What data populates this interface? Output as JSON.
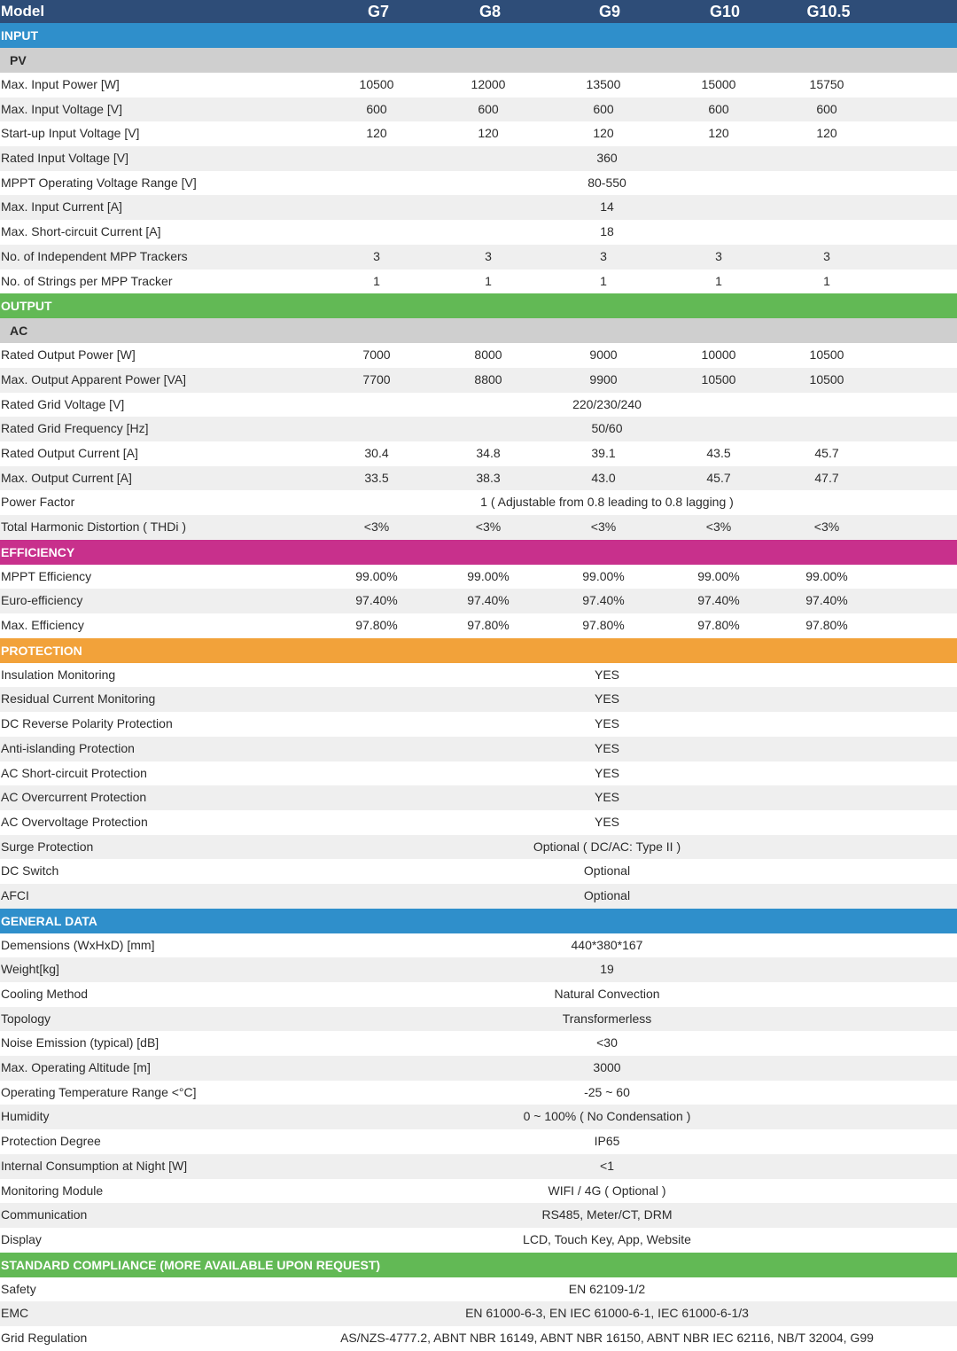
{
  "header": {
    "model_label": "Model",
    "models": [
      "G7",
      "G8",
      "G9",
      "G10",
      "G10.5"
    ],
    "color": "#2e4d78"
  },
  "sections": [
    {
      "title": "INPUT",
      "color": "#2f8fcb",
      "subtitle": "PV",
      "rows": [
        {
          "label": "Max. Input Power [W]",
          "values": [
            "10500",
            "12000",
            "13500",
            "15000",
            "15750"
          ]
        },
        {
          "label": "Max. Input Voltage [V]",
          "values": [
            "600",
            "600",
            "600",
            "600",
            "600"
          ]
        },
        {
          "label": "Start-up Input Voltage [V]",
          "values": [
            "120",
            "120",
            "120",
            "120",
            "120"
          ]
        },
        {
          "label": "Rated Input Voltage [V]",
          "span": "360"
        },
        {
          "label": "MPPT Operating Voltage Range [V]",
          "span": "80-550"
        },
        {
          "label": "Max. Input Current [A]",
          "span": "14"
        },
        {
          "label": "Max. Short-circuit Current [A]",
          "span": "18"
        },
        {
          "label": "No. of Independent MPP Trackers",
          "values": [
            "3",
            "3",
            "3",
            "3",
            "3"
          ]
        },
        {
          "label": "No. of Strings per MPP Tracker",
          "values": [
            "1",
            "1",
            "1",
            "1",
            "1"
          ]
        }
      ]
    },
    {
      "title": "OUTPUT",
      "color": "#62b955",
      "subtitle": "AC",
      "rows": [
        {
          "label": "Rated Output Power [W]",
          "values": [
            "7000",
            "8000",
            "9000",
            "10000",
            "10500"
          ]
        },
        {
          "label": "Max. Output Apparent Power [VA]",
          "values": [
            "7700",
            "8800",
            "9900",
            "10500",
            "10500"
          ]
        },
        {
          "label": "Rated Grid Voltage [V]",
          "span": "220/230/240"
        },
        {
          "label": "Rated Grid Frequency [Hz]",
          "span": "50/60"
        },
        {
          "label": "Rated Output Current [A]",
          "values": [
            "30.4",
            "34.8",
            "39.1",
            "43.5",
            "45.7"
          ]
        },
        {
          "label": "Max. Output Current [A]",
          "values": [
            "33.5",
            "38.3",
            "43.0",
            "45.7",
            "47.7"
          ]
        },
        {
          "label": "Power Factor",
          "span": "1 ( Adjustable from 0.8 leading to 0.8 lagging )"
        },
        {
          "label": "Total Harmonic Distortion ( THDi )",
          "values": [
            "<3%",
            "<3%",
            "<3%",
            "<3%",
            "<3%"
          ]
        }
      ]
    },
    {
      "title": "EFFICIENCY",
      "color": "#c8308c",
      "rows": [
        {
          "label": "MPPT Efficiency",
          "values": [
            "99.00%",
            "99.00%",
            "99.00%",
            "99.00%",
            "99.00%"
          ]
        },
        {
          "label": "Euro-efficiency",
          "values": [
            "97.40%",
            "97.40%",
            "97.40%",
            "97.40%",
            "97.40%"
          ]
        },
        {
          "label": "Max. Efficiency",
          "values": [
            "97.80%",
            "97.80%",
            "97.80%",
            "97.80%",
            "97.80%"
          ]
        }
      ]
    },
    {
      "title": "PROTECTION",
      "color": "#f2a23a",
      "rows": [
        {
          "label": "Insulation Monitoring",
          "span": "YES"
        },
        {
          "label": "Residual Current Monitoring",
          "span": "YES"
        },
        {
          "label": "DC Reverse Polarity Protection",
          "span": "YES"
        },
        {
          "label": "Anti-islanding Protection",
          "span": "YES"
        },
        {
          "label": "AC Short-circuit Protection",
          "span": "YES"
        },
        {
          "label": "AC Overcurrent Protection",
          "span": "YES"
        },
        {
          "label": "AC Overvoltage Protection",
          "span": "YES"
        },
        {
          "label": "Surge Protection",
          "span": "Optional ( DC/AC: Type II )"
        },
        {
          "label": "DC Switch",
          "span": "Optional"
        },
        {
          "label": "AFCI",
          "span": "Optional"
        }
      ]
    },
    {
      "title": "GENERAL DATA",
      "color": "#2f8fcb",
      "rows": [
        {
          "label": "Demensions (WxHxD) [mm]",
          "span": "440*380*167"
        },
        {
          "label": "Weight[kg]",
          "span": "19"
        },
        {
          "label": "Cooling Method",
          "span": "Natural Convection"
        },
        {
          "label": "Topology",
          "span": "Transformerless"
        },
        {
          "label": "Noise Emission (typical) [dB]",
          "span": "<30"
        },
        {
          "label": "Max. Operating Altitude [m]",
          "span": "3000"
        },
        {
          "label": "Operating Temperature  Range <°C]",
          "span": "-25 ~ 60"
        },
        {
          "label": "Humidity",
          "span": "0 ~ 100% ( No Condensation )"
        },
        {
          "label": "Protection Degree",
          "span": "IP65"
        },
        {
          "label": "Internal Consumption at Night [W]",
          "span": "<1"
        },
        {
          "label": "Monitoring Module",
          "span": "WIFI / 4G ( Optional )"
        },
        {
          "label": "Communication",
          "span": "RS485, Meter/CT, DRM"
        },
        {
          "label": "Display",
          "span": "LCD, Touch Key, App, Website"
        }
      ]
    },
    {
      "title": "STANDARD COMPLIANCE (MORE AVAILABLE UPON REQUEST)",
      "color": "#62b955",
      "rows": [
        {
          "label": "Safety",
          "span": "EN 62109-1/2"
        },
        {
          "label": "EMC",
          "span": "EN 61000-6-3, EN IEC 61000-6-1, IEC 61000-6-1/3"
        },
        {
          "label": "Grid Regulation",
          "span": "AS/NZS-4777.2, ABNT NBR 16149, ABNT NBR 16150, ABNT NBR IEC 62116, NB/T 32004, G99"
        }
      ]
    }
  ]
}
